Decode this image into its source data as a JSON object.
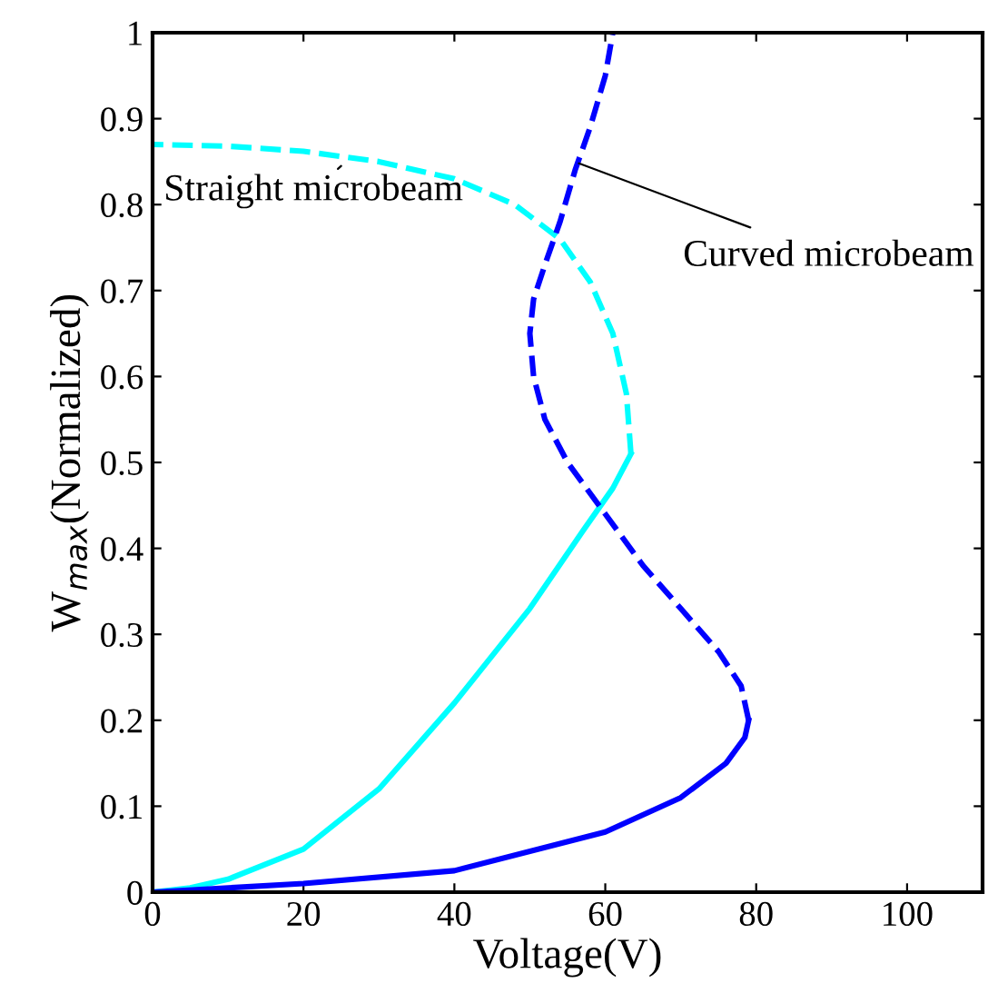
{
  "chart_data": {
    "type": "line",
    "xlabel": "Voltage(V)",
    "ylabel": "W$_{max}$(Normalized)",
    "xlim": [
      0,
      110
    ],
    "ylim": [
      0,
      1
    ],
    "xticks": [
      0,
      20,
      40,
      60,
      80,
      100
    ],
    "yticks": [
      0,
      0.1,
      0.2,
      0.3,
      0.4,
      0.5,
      0.6,
      0.7,
      0.8,
      0.9,
      1
    ],
    "grid": false,
    "series": [
      {
        "color": "#00ffff",
        "line_style": "solid",
        "x": [
          0,
          5,
          10,
          20,
          30,
          40,
          50,
          57,
          61,
          63.4
        ],
        "values": [
          0,
          0.005,
          0.015,
          0.05,
          0.12,
          0.22,
          0.33,
          0.42,
          0.47,
          0.51
        ]
      },
      {
        "color": "#00ffff",
        "line_style": "dashed",
        "x": [
          63.4,
          62.8,
          61,
          58,
          54,
          48,
          40,
          30,
          20,
          10,
          0
        ],
        "values": [
          0.51,
          0.58,
          0.65,
          0.71,
          0.76,
          0.8,
          0.83,
          0.85,
          0.862,
          0.868,
          0.87
        ]
      },
      {
        "color": "#0000ff",
        "line_style": "solid",
        "x": [
          0,
          20,
          40,
          60,
          70,
          76,
          78.5,
          79
        ],
        "values": [
          0,
          0.01,
          0.025,
          0.07,
          0.11,
          0.15,
          0.18,
          0.2
        ]
      },
      {
        "color": "#0000ff",
        "line_style": "dashed",
        "x": [
          79,
          78,
          75,
          70,
          65,
          60,
          55,
          52,
          50.5,
          50,
          50.5,
          52,
          54,
          56,
          58,
          60,
          61
        ],
        "values": [
          0.2,
          0.24,
          0.28,
          0.33,
          0.38,
          0.44,
          0.5,
          0.55,
          0.6,
          0.65,
          0.69,
          0.73,
          0.78,
          0.84,
          0.89,
          0.95,
          1.0
        ]
      }
    ],
    "annotations": [
      {
        "text": "Straight microbeam",
        "x": 25,
        "y": 0.845
      },
      {
        "text": "Curved microbeam",
        "x": 56.5,
        "y": 0.848
      }
    ]
  }
}
